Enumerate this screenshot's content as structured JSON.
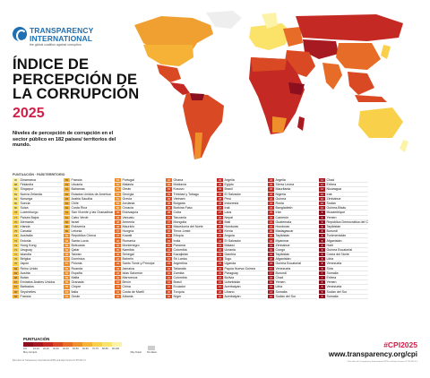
{
  "brand": {
    "name_line1": "TRANSPARENCY",
    "name_line2": "INTERNATIONAL",
    "tagline": "the global coalition against corruption"
  },
  "title": {
    "line1": "ÍNDICE DE",
    "line2": "PERCEPCIÓN DE",
    "line3": "LA CORRUPCIÓN",
    "year": "2025"
  },
  "subtitle": "Niveles de percepción de corrupción en el sector público en 182 países/ territorios del mundo.",
  "table": {
    "header": "PUNTUACIÓN · PAÍS/TERRITORIO",
    "columns": [
      [
        [
          "90",
          "Dinamarca"
        ],
        [
          "88",
          "Finlandia"
        ],
        [
          "84",
          "Singapur"
        ],
        [
          "83",
          "Nueva Zelanda"
        ],
        [
          "81",
          "Noruega"
        ],
        [
          "80",
          "Suecia"
        ],
        [
          "80",
          "Suiza"
        ],
        [
          "78",
          "Luxemburgo"
        ],
        [
          "77",
          "Países Bajos"
        ],
        [
          "76",
          "Alemania"
        ],
        [
          "75",
          "Irlanda"
        ],
        [
          "75",
          "Canadá"
        ],
        [
          "74",
          "Australia"
        ],
        [
          "73",
          "Estonia"
        ],
        [
          "72",
          "Hong Kong"
        ],
        [
          "71",
          "Uruguay"
        ],
        [
          "71",
          "Islandia"
        ],
        [
          "70",
          "Bélgica"
        ],
        [
          "70",
          "Japón"
        ],
        [
          "69",
          "Reino Unido"
        ],
        [
          "69",
          "Austria"
        ],
        [
          "68",
          "Bután"
        ],
        [
          "67",
          "Emiratos Árabes Unidos"
        ],
        [
          "67",
          "Barbados"
        ],
        [
          "66",
          "Seychelles"
        ],
        [
          "66",
          "Francia"
        ]
      ],
      [
        [
          "65",
          "Francia"
        ],
        [
          "64",
          "Lituania"
        ],
        [
          "64",
          "Bahamas"
        ],
        [
          "63",
          "Estados Unidos de América"
        ],
        [
          "63",
          "Arabia Saudita"
        ],
        [
          "62",
          "Chile"
        ],
        [
          "62",
          "Costa Rica"
        ],
        [
          "61",
          "San Vicente y las Granadinas"
        ],
        [
          "61",
          "Cabo Verde"
        ],
        [
          "60",
          "Israel"
        ],
        [
          "60",
          "Eslovenia"
        ],
        [
          "60",
          "Letonia"
        ],
        [
          "59",
          "República Checa"
        ],
        [
          "59",
          "Santa Lucía"
        ],
        [
          "58",
          "Botsuana"
        ],
        [
          "58",
          "Qatar"
        ],
        [
          "58",
          "Taiwán"
        ],
        [
          "57",
          "Dominica"
        ],
        [
          "57",
          "Polonia"
        ],
        [
          "56",
          "Ruanda"
        ],
        [
          "56",
          "España"
        ],
        [
          "55",
          "Malta"
        ],
        [
          "55",
          "Granada"
        ],
        [
          "55",
          "Chipre"
        ],
        [
          "54",
          "Italia"
        ],
        [
          "54",
          "Omán"
        ]
      ],
      [
        [
          "53",
          "Portugal"
        ],
        [
          "52",
          "Malasia"
        ],
        [
          "52",
          "Omán"
        ],
        [
          "51",
          "Georgia"
        ],
        [
          "51",
          "Grecia"
        ],
        [
          "50",
          "Jordania"
        ],
        [
          "50",
          "Croacia"
        ],
        [
          "49",
          "Eslovaquia"
        ],
        [
          "49",
          "Vanuatu"
        ],
        [
          "48",
          "Armenia"
        ],
        [
          "48",
          "Mauricio"
        ],
        [
          "47",
          "Hungría"
        ],
        [
          "47",
          "Kuwait"
        ],
        [
          "46",
          "Rumanía"
        ],
        [
          "46",
          "Montenegro"
        ],
        [
          "45",
          "Namibia"
        ],
        [
          "45",
          "Senegal"
        ],
        [
          "44",
          "Bahréin"
        ],
        [
          "44",
          "Santo Tomé y Príncipe"
        ],
        [
          "43",
          "Jamaica"
        ],
        [
          "43",
          "Islas Salomón"
        ],
        [
          "42",
          "Marruecos"
        ],
        [
          "42",
          "Benín"
        ],
        [
          "41",
          "China"
        ],
        [
          "41",
          "Costa de Marfil"
        ],
        [
          "40",
          "Albania"
        ]
      ],
      [
        [
          "40",
          "Ghana"
        ],
        [
          "40",
          "Moldavia"
        ],
        [
          "39",
          "Kosovo"
        ],
        [
          "39",
          "Trinidad y Tobago"
        ],
        [
          "39",
          "Vietnam"
        ],
        [
          "38",
          "Bulgaria"
        ],
        [
          "38",
          "Burkina Faso"
        ],
        [
          "38",
          "Cuba"
        ],
        [
          "37",
          "Tanzania"
        ],
        [
          "37",
          "Mongolia"
        ],
        [
          "36",
          "Macedonia del Norte"
        ],
        [
          "36",
          "Timor-Leste"
        ],
        [
          "35",
          "Etiopía"
        ],
        [
          "35",
          "India"
        ],
        [
          "35",
          "Panamá"
        ],
        [
          "34",
          "Colombia"
        ],
        [
          "34",
          "Kazajistán"
        ],
        [
          "34",
          "Sri Lanka"
        ],
        [
          "33",
          "Argentina"
        ],
        [
          "33",
          "Tailandia"
        ],
        [
          "32",
          "Zambia"
        ],
        [
          "32",
          "Colombia"
        ],
        [
          "31",
          "Brasil"
        ],
        [
          "31",
          "Ecuador"
        ],
        [
          "30",
          "Turquía"
        ],
        [
          "30",
          "Níger"
        ]
      ],
      [
        [
          "29",
          "Argelia"
        ],
        [
          "29",
          "Egipto"
        ],
        [
          "29",
          "Brasil"
        ],
        [
          "28",
          "El Salvador"
        ],
        [
          "28",
          "Perú"
        ],
        [
          "28",
          "Indonesia"
        ],
        [
          "27",
          "Irak"
        ],
        [
          "27",
          "Laos"
        ],
        [
          "26",
          "Nepal"
        ],
        [
          "26",
          "Mali"
        ],
        [
          "25",
          "Honduras"
        ],
        [
          "25",
          "Kenia"
        ],
        [
          "25",
          "Angola"
        ],
        [
          "24",
          "El Salvador"
        ],
        [
          "24",
          "Malawi"
        ],
        [
          "24",
          "Ucrania"
        ],
        [
          "23",
          "Gambia"
        ],
        [
          "23",
          "Togo"
        ],
        [
          "23",
          "Uganda"
        ],
        [
          "22",
          "Papúa Nueva Guinea"
        ],
        [
          "22",
          "Paraguay"
        ],
        [
          "22",
          "Bolivia"
        ],
        [
          "21",
          "Uzbekistán"
        ],
        [
          "21",
          "Azerbaiyán"
        ],
        [
          "20",
          "Líbano"
        ],
        [
          "20",
          "Azerbaiyán"
        ]
      ],
      [
        [
          "26",
          "Argelia"
        ],
        [
          "26",
          "Sierra Leona"
        ],
        [
          "25",
          "Mauritania"
        ],
        [
          "25",
          "Nigeria"
        ],
        [
          "24",
          "Guinea"
        ],
        [
          "24",
          "Rusia"
        ],
        [
          "23",
          "Bangladesh"
        ],
        [
          "22",
          "Irán"
        ],
        [
          "22",
          "Camerún"
        ],
        [
          "21",
          "Guatemala"
        ],
        [
          "21",
          "Honduras"
        ],
        [
          "20",
          "Madagascar"
        ],
        [
          "20",
          "Tayikistán"
        ],
        [
          "20",
          "Myanmar"
        ],
        [
          "19",
          "Zimbabue"
        ],
        [
          "19",
          "Congo"
        ],
        [
          "19",
          "Tayikistán"
        ],
        [
          "18",
          "Afganistán"
        ],
        [
          "18",
          "Guinea Ecuatorial"
        ],
        [
          "17",
          "Venezuela"
        ],
        [
          "17",
          "Burundi"
        ],
        [
          "16",
          "Chad"
        ],
        [
          "16",
          "Yemen"
        ],
        [
          "15",
          "Libia"
        ],
        [
          "13",
          "Somalia"
        ],
        [
          "12",
          "Sudán del Sur"
        ]
      ],
      [
        [
          "11",
          "Chad"
        ],
        [
          "11",
          "Eritrea"
        ],
        [
          "10",
          "Nicaragua"
        ],
        [
          "10",
          "Irak"
        ],
        [
          "10",
          "Zimbabue"
        ],
        [
          "10",
          "Sudán"
        ],
        [
          "10",
          "Guinea-Bisáu"
        ],
        [
          "9",
          "Mozambique"
        ],
        [
          "9",
          "Yemen"
        ],
        [
          "9",
          "República Democrática del Congo"
        ],
        [
          "9",
          "Tayikistán"
        ],
        [
          "8",
          "Burundi"
        ],
        [
          "8",
          "Turkmenistán"
        ],
        [
          "8",
          "Afganistán"
        ],
        [
          "8",
          "Haití"
        ],
        [
          "8",
          "Guinea Ecuatorial"
        ],
        [
          "8",
          "Corea del Norte"
        ],
        [
          "8",
          "Libia"
        ],
        [
          "8",
          "Venezuela"
        ],
        [
          "8",
          "Siria"
        ],
        [
          "7",
          "Somalia"
        ],
        [
          "7",
          "Eritrea"
        ],
        [
          "6",
          "Yemen"
        ],
        [
          "6",
          "Venezuela"
        ],
        [
          "5",
          "Sudán del Sur"
        ],
        [
          "5",
          "Somalia"
        ]
      ]
    ]
  },
  "legend": {
    "title": "PUNTUACIÓN",
    "ticks": [
      "0-9",
      "10-19",
      "20-29",
      "30-39",
      "40-49",
      "50-59",
      "60-69",
      "70-79",
      "80-89",
      "90-100"
    ],
    "no_data": "Sin datos",
    "left": "Muy corrupto",
    "right": "Muy limpio",
    "note": "Esta obra de Transparency International (2025) está bajo licencia CC BY-ND 4.0",
    "colors": [
      "#8b0f1f",
      "#a81a22",
      "#c42a23",
      "#d94a24",
      "#e66c28",
      "#ef8f2c",
      "#f5b236",
      "#f8d04a",
      "#fbe36a",
      "#fdf3a8"
    ]
  },
  "footer": {
    "hashtag": "#CPI2025",
    "url": "www.transparency.org/cpi",
    "note": "Esta obra de Transparency International (2025) está bajo licencia CC BY-ND 4.0"
  }
}
